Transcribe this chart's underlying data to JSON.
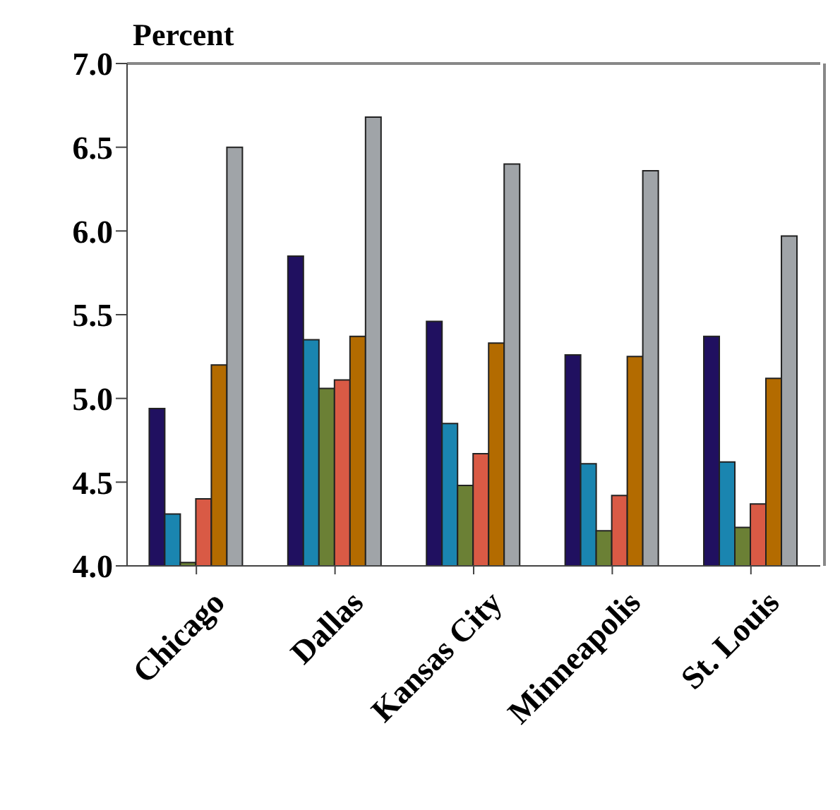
{
  "chart_data": {
    "type": "bar",
    "ylabel": "Percent",
    "categories": [
      "Chicago",
      "Dallas",
      "Kansas City",
      "Minneapolis",
      "St. Louis"
    ],
    "series": [
      {
        "color": "#201060",
        "values": [
          4.94,
          5.85,
          5.46,
          5.26,
          5.37
        ]
      },
      {
        "color": "#1a85b0",
        "values": [
          4.31,
          5.35,
          4.85,
          4.61,
          4.62
        ]
      },
      {
        "color": "#6b8035",
        "values": [
          4.02,
          5.06,
          4.48,
          4.21,
          4.23
        ]
      },
      {
        "color": "#d95a45",
        "values": [
          4.4,
          5.11,
          4.67,
          4.42,
          4.37
        ]
      },
      {
        "color": "#b36b00",
        "values": [
          5.2,
          5.37,
          5.33,
          5.25,
          5.12
        ]
      },
      {
        "color": "#a0a4a8",
        "values": [
          6.5,
          6.68,
          6.4,
          6.36,
          5.97
        ]
      }
    ],
    "ylim": [
      4.0,
      7.0
    ],
    "yticks": [
      {
        "value": 4.0,
        "label": "4.0"
      },
      {
        "value": 4.5,
        "label": "4.5"
      },
      {
        "value": 5.0,
        "label": "5.0"
      },
      {
        "value": 5.5,
        "label": "5.5"
      },
      {
        "value": 6.0,
        "label": "6.0"
      },
      {
        "value": 6.5,
        "label": "6.5"
      },
      {
        "value": 7.0,
        "label": "7.0"
      }
    ],
    "grid": false,
    "legend": false
  }
}
